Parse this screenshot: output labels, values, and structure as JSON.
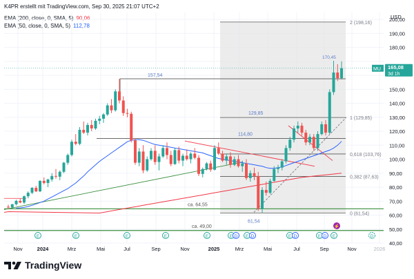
{
  "header": {
    "credit": "K4PR erstellt mit TradingView.com, Sep 30, 2025 21:07 UTC+2",
    "ema200_label": "EMA (200, close, 0, SMA, 5)",
    "ema200_value": "90,06",
    "ema50_label": "EMA (50, close, 0, SMA, 5)",
    "ema50_value": "112,78"
  },
  "brand": {
    "name": "TradingView"
  },
  "colors": {
    "up": "#26a69a",
    "down": "#ef5350",
    "ema200": "#f23645",
    "ema50": "#2962ff",
    "support": "#388e3c",
    "fib_zone": "#e6e6e6",
    "price_tag": "#26a69a"
  },
  "chart_data": {
    "type": "candlestick",
    "ticker": "MU",
    "currency": "USD",
    "interval": "3d 1h",
    "last_price": "165,08",
    "y_range": [
      40,
      205
    ],
    "y_ticks": [
      "200,00",
      "190,00",
      "180,00",
      "170,00",
      "160,00",
      "150,00",
      "140,00",
      "130,00",
      "120,00",
      "110,00",
      "100,00",
      "90,00",
      "80,00",
      "70,00",
      "60,00",
      "50,00",
      "40,00"
    ],
    "x_tick_labels": [
      "Nov",
      "2024",
      "Mrz",
      "Mai",
      "Jul",
      "Sep",
      "Nov",
      "2025",
      "Mrz",
      "Mai",
      "Jul",
      "Sep",
      "Nov",
      "2026"
    ],
    "grid": "light",
    "candles": [
      [
        66.0,
        67.5,
        64.5,
        65.5
      ],
      [
        65.5,
        68.0,
        64.8,
        67.8
      ],
      [
        67.8,
        71.0,
        67.0,
        70.2
      ],
      [
        70.2,
        72.0,
        68.5,
        69.0
      ],
      [
        69.0,
        74.0,
        68.0,
        73.5
      ],
      [
        73.5,
        77.0,
        72.0,
        76.0
      ],
      [
        76.0,
        80.0,
        75.0,
        79.5
      ],
      [
        79.5,
        81.0,
        76.5,
        77.0
      ],
      [
        77.0,
        85.0,
        76.5,
        84.5
      ],
      [
        84.5,
        87.0,
        82.0,
        83.0
      ],
      [
        83.0,
        86.0,
        80.0,
        85.5
      ],
      [
        85.5,
        90.0,
        84.0,
        88.0
      ],
      [
        88.0,
        93.0,
        86.0,
        87.5
      ],
      [
        87.5,
        92.0,
        85.0,
        91.0
      ],
      [
        91.0,
        98.0,
        90.0,
        97.5
      ],
      [
        97.5,
        104.0,
        96.0,
        103.0
      ],
      [
        103.0,
        114.0,
        102.0,
        112.5
      ],
      [
        112.5,
        118.0,
        110.0,
        111.0
      ],
      [
        111.0,
        123.0,
        110.0,
        121.0
      ],
      [
        121.0,
        127.0,
        118.0,
        119.0
      ],
      [
        119.0,
        126.0,
        117.0,
        124.5
      ],
      [
        124.5,
        128.0,
        120.0,
        122.0
      ],
      [
        122.0,
        129.0,
        121.0,
        127.5
      ],
      [
        127.5,
        131.0,
        125.0,
        129.0
      ],
      [
        129.0,
        133.0,
        126.0,
        132.0
      ],
      [
        132.0,
        140.0,
        131.0,
        138.5
      ],
      [
        138.5,
        143.0,
        133.0,
        135.0
      ],
      [
        135.0,
        150.0,
        134.0,
        148.5
      ],
      [
        148.5,
        157.5,
        140.0,
        142.0
      ],
      [
        142.0,
        145.0,
        131.0,
        133.0
      ],
      [
        133.0,
        136.0,
        130.0,
        132.5
      ],
      [
        132.5,
        134.0,
        112.0,
        113.5
      ],
      [
        113.5,
        115.0,
        96.0,
        97.5
      ],
      [
        97.5,
        108.0,
        95.0,
        105.5
      ],
      [
        105.5,
        110.0,
        90.0,
        92.0
      ],
      [
        92.0,
        102.0,
        91.0,
        100.0
      ],
      [
        100.0,
        108.0,
        99.0,
        106.0
      ],
      [
        106.0,
        110.0,
        96.0,
        98.0
      ],
      [
        98.0,
        104.0,
        92.0,
        102.0
      ],
      [
        102.0,
        110.0,
        101.0,
        108.0
      ],
      [
        108.0,
        112.0,
        100.0,
        103.0
      ],
      [
        103.0,
        106.0,
        95.0,
        96.5
      ],
      [
        96.5,
        108.0,
        96.0,
        106.5
      ],
      [
        106.5,
        109.0,
        97.0,
        99.0
      ],
      [
        99.0,
        104.0,
        95.0,
        102.5
      ],
      [
        102.5,
        107.0,
        99.0,
        100.0
      ],
      [
        100.0,
        105.0,
        97.0,
        104.0
      ],
      [
        104.0,
        108.0,
        100.0,
        101.0
      ],
      [
        101.0,
        103.0,
        88.0,
        89.5
      ],
      [
        89.5,
        94.0,
        87.0,
        93.0
      ],
      [
        93.0,
        98.0,
        92.0,
        97.0
      ],
      [
        97.0,
        99.0,
        91.0,
        92.5
      ],
      [
        92.5,
        110.0,
        92.0,
        108.0
      ],
      [
        108.0,
        112.0,
        103.0,
        104.0
      ],
      [
        104.0,
        106.0,
        98.0,
        99.0
      ],
      [
        99.0,
        104.0,
        96.0,
        102.0
      ],
      [
        102.0,
        105.0,
        94.0,
        96.0
      ],
      [
        96.0,
        102.0,
        95.0,
        100.0
      ],
      [
        100.0,
        103.0,
        94.0,
        95.0
      ],
      [
        95.0,
        99.0,
        91.0,
        97.0
      ],
      [
        97.0,
        100.0,
        85.0,
        86.5
      ],
      [
        86.5,
        92.0,
        84.0,
        90.0
      ],
      [
        90.0,
        94.0,
        85.0,
        88.0
      ],
      [
        88.0,
        91.0,
        63.0,
        64.5
      ],
      [
        64.5,
        80.0,
        61.54,
        78.0
      ],
      [
        78.0,
        84.0,
        74.0,
        76.0
      ],
      [
        76.0,
        86.0,
        75.0,
        84.5
      ],
      [
        84.5,
        95.0,
        84.0,
        93.0
      ],
      [
        93.0,
        96.0,
        90.0,
        94.0
      ],
      [
        94.0,
        100.0,
        92.0,
        98.5
      ],
      [
        98.5,
        110.0,
        97.0,
        108.0
      ],
      [
        108.0,
        116.0,
        106.0,
        114.0
      ],
      [
        114.0,
        124.0,
        112.0,
        122.0
      ],
      [
        122.0,
        127.0,
        119.0,
        124.0
      ],
      [
        124.0,
        126.0,
        117.0,
        119.0
      ],
      [
        119.0,
        121.0,
        110.0,
        112.0
      ],
      [
        112.0,
        118.0,
        110.0,
        116.0
      ],
      [
        116.0,
        118.0,
        106.0,
        108.0
      ],
      [
        108.0,
        120.0,
        106.0,
        118.0
      ],
      [
        118.0,
        127.0,
        117.0,
        125.0
      ],
      [
        125.0,
        128.0,
        117.0,
        119.0
      ],
      [
        119.0,
        150.0,
        118.0,
        148.0
      ],
      [
        148.0,
        170.45,
        146.0,
        162.0
      ],
      [
        162.0,
        168.0,
        156.0,
        158.0
      ],
      [
        158.0,
        170.0,
        157.0,
        165.08
      ]
    ],
    "ema50": [
      65,
      65.2,
      65.6,
      66.2,
      67,
      68,
      69,
      70,
      71.5,
      73,
      74.5,
      76,
      77.5,
      79,
      81,
      83,
      85.5,
      88,
      91,
      93.5,
      96,
      98.5,
      100.5,
      102.5,
      104.5,
      106.5,
      108.5,
      110.5,
      112.5,
      113.5,
      114,
      114,
      113.5,
      112.5,
      111.5,
      110.5,
      110,
      109.5,
      109,
      108.5,
      108,
      107.5,
      107,
      106.5,
      106,
      105.5,
      105,
      104.5,
      103.5,
      102.5,
      101.5,
      100.5,
      100,
      99.5,
      99,
      98.5,
      98,
      97.5,
      97,
      96.5,
      96,
      95.5,
      95,
      94,
      93.5,
      93.5,
      94,
      94.5,
      95.5,
      96.5,
      97.5,
      98.5,
      99.5,
      100.5,
      101.5,
      102.5,
      103.5,
      104.5,
      105.5,
      106.5,
      108,
      110,
      112.78
    ],
    "ema200": [
      61.5,
      62,
      62.5,
      63,
      63.5,
      64,
      64.5,
      65,
      65.5,
      66,
      66.5,
      67,
      67.5,
      68,
      68.5,
      69,
      69.5,
      70,
      70.5,
      71,
      71.5,
      72,
      72.5,
      73,
      73.5,
      74,
      74.5,
      75,
      75.5,
      76,
      76.5,
      77,
      77.5,
      78,
      78.5,
      79,
      79.5,
      80,
      80.5,
      81,
      81.5,
      82,
      82.5,
      83,
      83.5,
      84,
      84.5,
      85,
      85.5,
      86,
      86.5,
      87,
      87.3,
      87.6,
      87.9,
      88.2,
      88.5,
      88.8,
      89.1,
      89.4,
      89.7,
      90.06
    ],
    "fibonacci": [
      {
        "ratio": "2",
        "value": 198.16,
        "label": "2 (198,16)"
      },
      {
        "ratio": "1",
        "value": 129.85,
        "label": "1 (129,85)"
      },
      {
        "ratio": "0.618",
        "value": 103.76,
        "label": "0,618 (103,76)"
      },
      {
        "ratio": "0.382",
        "value": 87.63,
        "label": "0,382 (87,63)"
      },
      {
        "ratio": "0",
        "value": 61.54,
        "label": "0 (61,54)"
      }
    ],
    "levels": [
      {
        "value": 157.54,
        "label": "157,54"
      },
      {
        "value": 129.85,
        "label": "129,85"
      },
      {
        "value": 114.8,
        "label": "114,80"
      },
      {
        "value": 64.55,
        "label": "ca. 64,55"
      },
      {
        "value": 49.0,
        "label": "ca. 49,00"
      }
    ],
    "annotations": [
      {
        "value": 170.45,
        "label": "170,45"
      },
      {
        "value": 61.54,
        "label": "61,54"
      }
    ],
    "event_markers": [
      {
        "text": "E",
        "type": "earnings"
      },
      {
        "text": "E",
        "type": "earnings"
      },
      {
        "text": "E",
        "type": "earnings"
      },
      {
        "text": "E",
        "type": "earnings"
      },
      {
        "text": "E",
        "type": "earnings"
      },
      {
        "text": "E",
        "type": "earnings"
      },
      {
        "text": "D",
        "type": "dividend"
      },
      {
        "text": "E",
        "type": "earnings"
      },
      {
        "text": "D",
        "type": "dividend"
      },
      {
        "text": "E",
        "type": "earnings"
      },
      {
        "text": "D",
        "type": "dividend"
      },
      {
        "text": "E",
        "type": "earnings"
      },
      {
        "text": "D",
        "type": "dividend"
      },
      {
        "text": "E",
        "type": "earnings"
      },
      {
        "text": "D",
        "type": "dividend"
      },
      {
        "text": "E",
        "type": "earnings"
      }
    ]
  }
}
